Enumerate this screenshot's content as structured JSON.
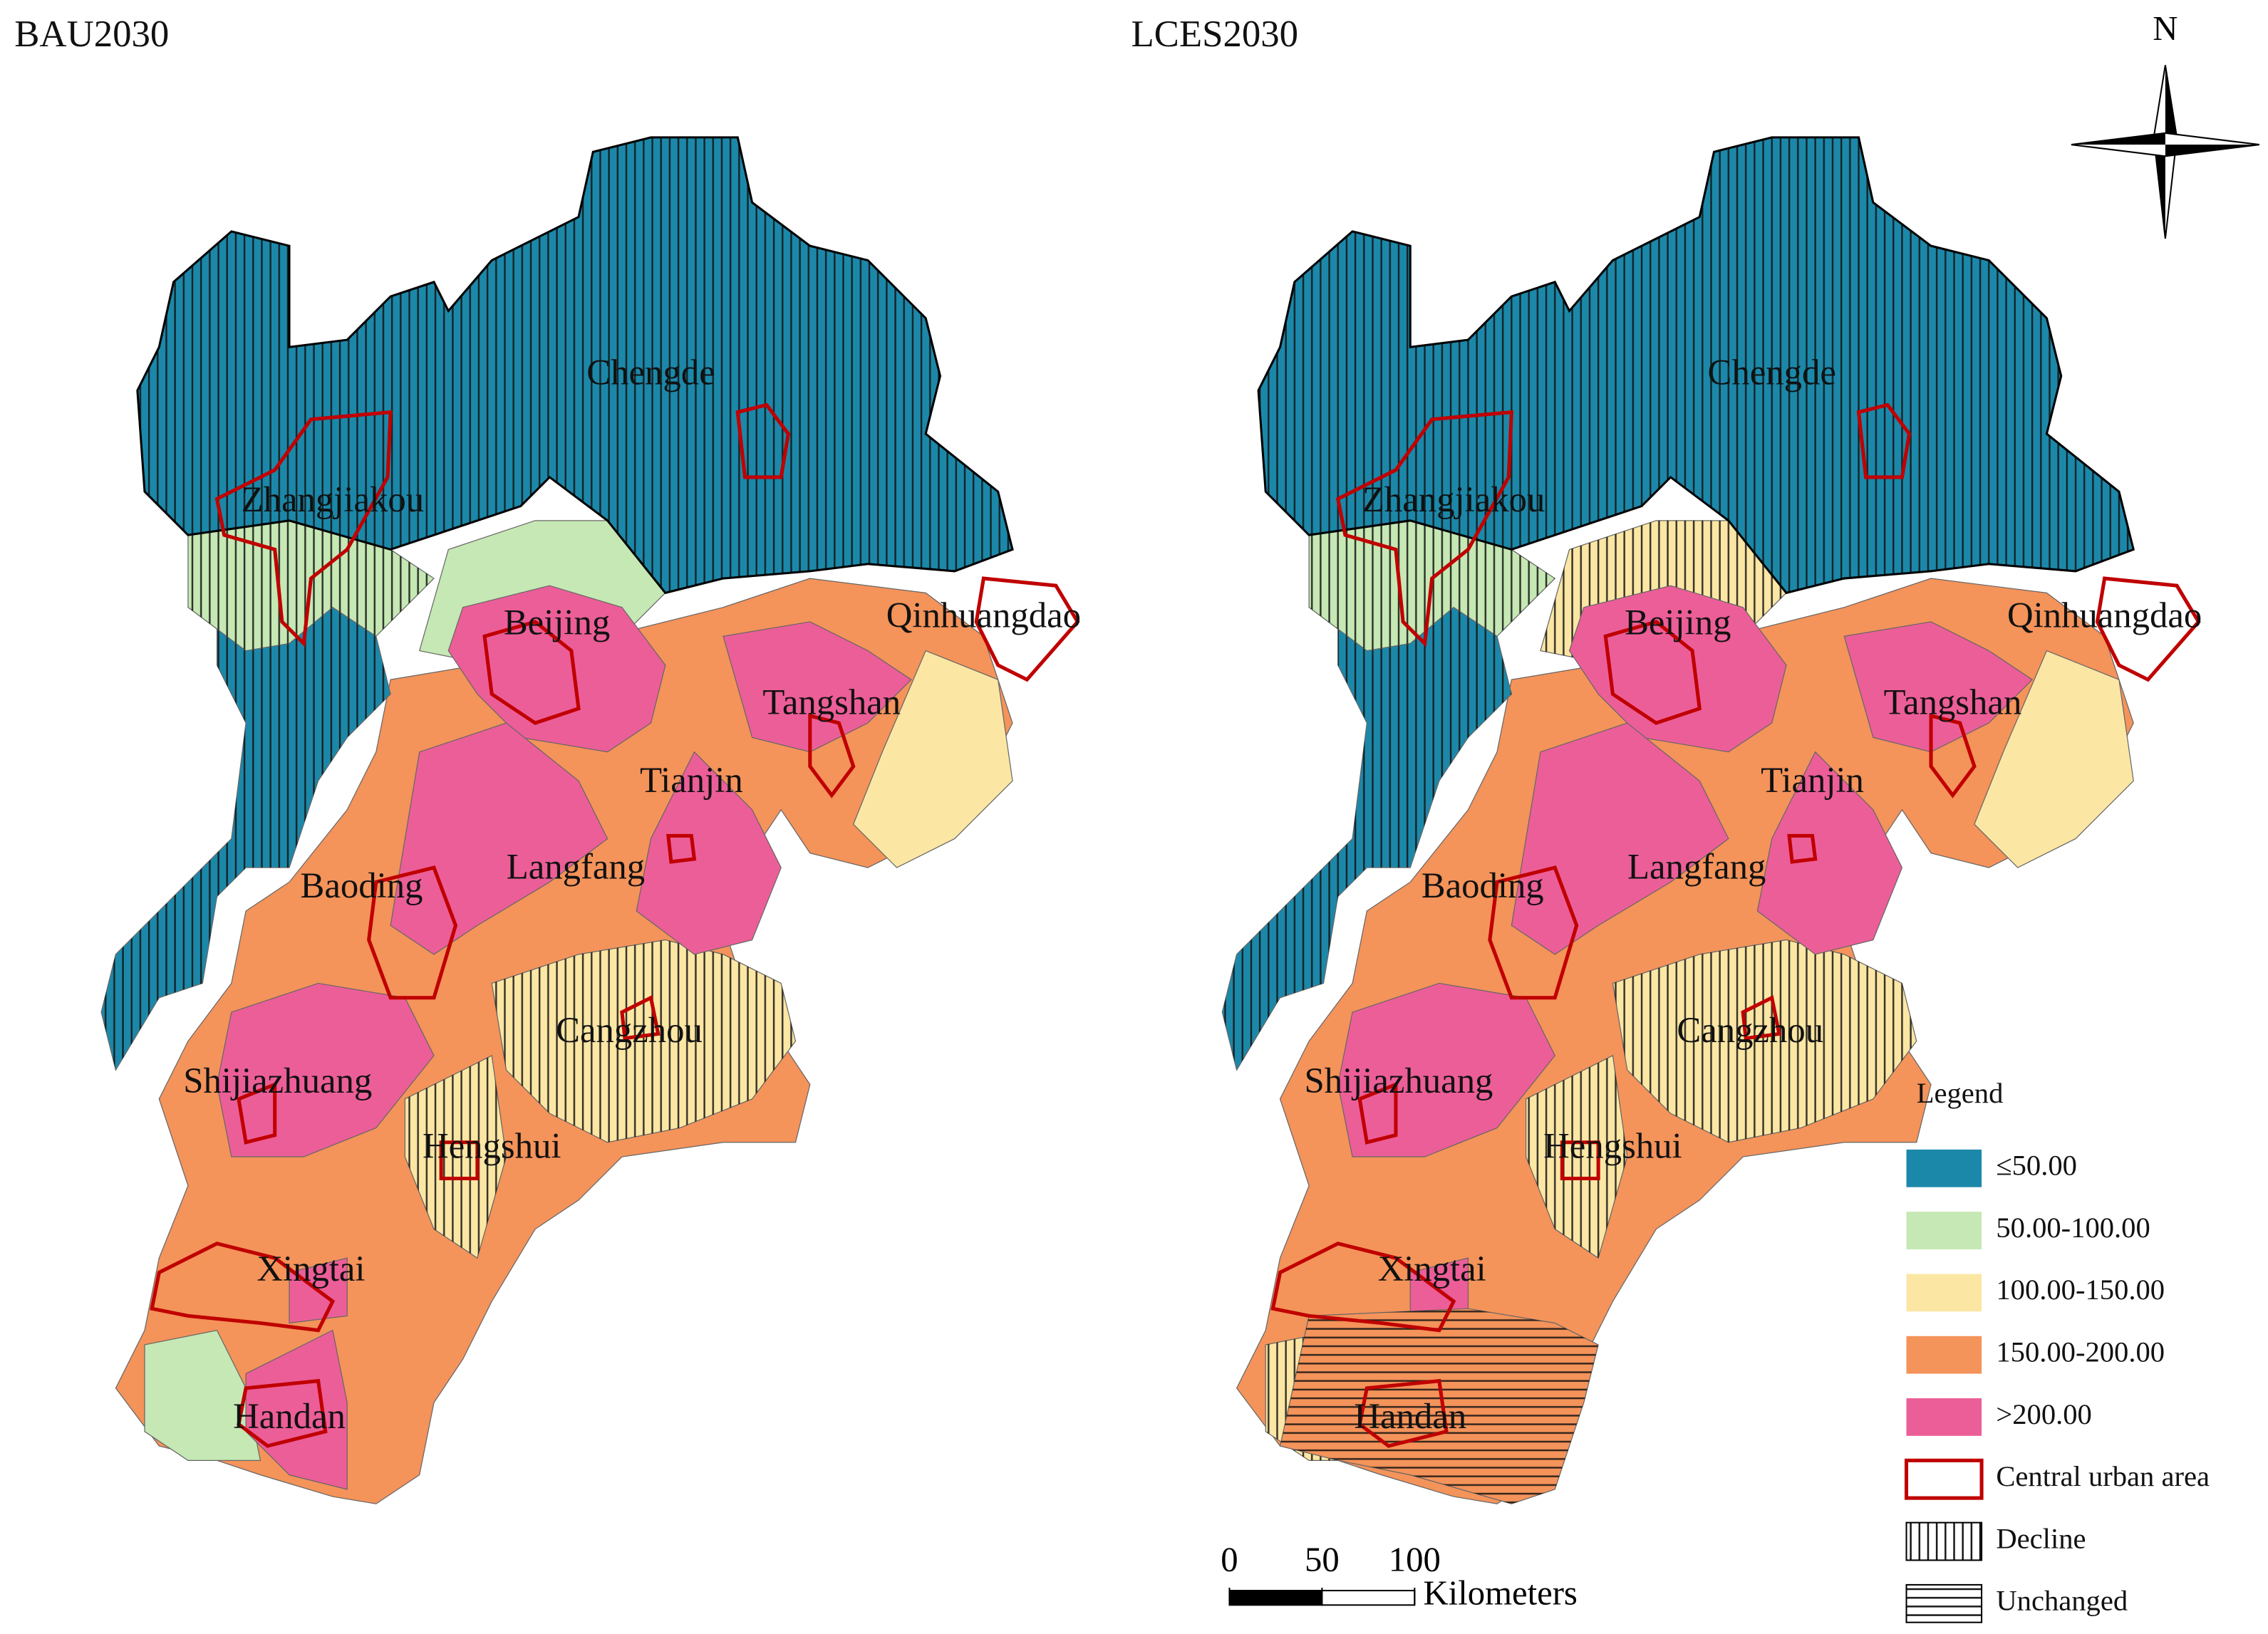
{
  "maps": [
    {
      "title": "BAU2030"
    },
    {
      "title": "LCES2030"
    }
  ],
  "cities": [
    "Chengde",
    "Zhangjiakou",
    "Qinhuangdao",
    "Beijing",
    "Tangshan",
    "Tianjin",
    "Langfang",
    "Baoding",
    "Cangzhou",
    "Shijiazhuang",
    "Hengshui",
    "Xingtai",
    "Handan"
  ],
  "north": "N",
  "legend": {
    "title": "Legend",
    "classes": [
      {
        "label": "≤50.00",
        "color": "#1c88a9"
      },
      {
        "label": "50.00-100.00",
        "color": "#c6e8b4"
      },
      {
        "label": "100.00-150.00",
        "color": "#fbe6a4"
      },
      {
        "label": "150.00-200.00",
        "color": "#f4935a"
      },
      {
        "label": ">200.00",
        "color": "#ec5e98"
      }
    ],
    "central_urban": "Central urban area",
    "central_urban_color": "#c00000",
    "decline": "Decline",
    "unchanged": "Unchanged"
  },
  "scale_bar": {
    "ticks": [
      0,
      50,
      100
    ],
    "unit": "Kilometers"
  }
}
